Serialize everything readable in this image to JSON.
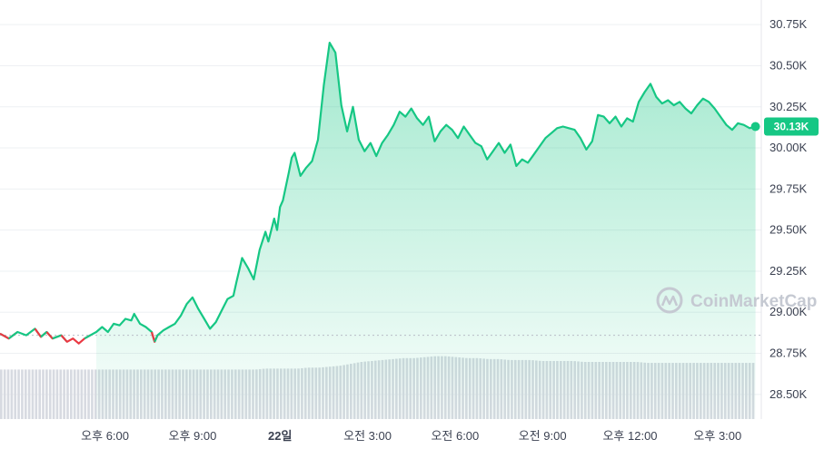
{
  "chart_data": {
    "type": "area",
    "y_ticks": [
      "30.75K",
      "30.50K",
      "30.25K",
      "30.00K",
      "29.75K",
      "29.50K",
      "29.25K",
      "29.00K",
      "28.75K",
      "28.50K"
    ],
    "y_tick_values": [
      30750,
      30500,
      30250,
      30000,
      29750,
      29500,
      29250,
      29000,
      28750,
      28500
    ],
    "ylim": [
      28350,
      30900
    ],
    "x_ticks": [
      {
        "label": "오후 6:00",
        "h": 3
      },
      {
        "label": "오후 9:00",
        "h": 6
      },
      {
        "label": "22일",
        "h": 9,
        "bold": true
      },
      {
        "label": "오전 3:00",
        "h": 12
      },
      {
        "label": "오전 6:00",
        "h": 15
      },
      {
        "label": "오전 9:00",
        "h": 18
      },
      {
        "label": "오후 12:00",
        "h": 21
      },
      {
        "label": "오후 3:00",
        "h": 24
      }
    ],
    "xlim": [
      -0.6,
      25.5
    ],
    "baseline": 28860,
    "current_value": 30130,
    "current_label": "30.13K",
    "colors": {
      "up": "#16c784",
      "down": "#ea3943",
      "badge": "#16c784",
      "baseline": "#b8bcc6"
    },
    "series": [
      {
        "values": [
          [
            -0.6,
            28870
          ],
          [
            -0.3,
            28840
          ],
          [
            0.0,
            28880
          ],
          [
            0.3,
            28860
          ],
          [
            0.6,
            28900
          ],
          [
            0.8,
            28850
          ],
          [
            1.0,
            28880
          ],
          [
            1.2,
            28840
          ],
          [
            1.5,
            28860
          ],
          [
            1.7,
            28820
          ],
          [
            1.9,
            28840
          ],
          [
            2.1,
            28810
          ],
          [
            2.3,
            28840
          ],
          [
            2.5,
            28860
          ],
          [
            2.7,
            28880
          ],
          [
            2.9,
            28910
          ],
          [
            3.1,
            28880
          ],
          [
            3.3,
            28930
          ],
          [
            3.5,
            28920
          ],
          [
            3.7,
            28960
          ],
          [
            3.9,
            28950
          ],
          [
            4.0,
            28990
          ],
          [
            4.2,
            28930
          ],
          [
            4.4,
            28910
          ],
          [
            4.6,
            28880
          ],
          [
            4.7,
            28820
          ],
          [
            4.8,
            28860
          ],
          [
            5.0,
            28890
          ],
          [
            5.2,
            28910
          ],
          [
            5.4,
            28930
          ],
          [
            5.6,
            28980
          ],
          [
            5.8,
            29050
          ],
          [
            6.0,
            29090
          ],
          [
            6.2,
            29020
          ],
          [
            6.4,
            28960
          ],
          [
            6.6,
            28900
          ],
          [
            6.8,
            28940
          ],
          [
            7.0,
            29010
          ],
          [
            7.2,
            29080
          ],
          [
            7.4,
            29100
          ],
          [
            7.5,
            29180
          ],
          [
            7.7,
            29330
          ],
          [
            7.9,
            29270
          ],
          [
            8.1,
            29200
          ],
          [
            8.3,
            29380
          ],
          [
            8.5,
            29490
          ],
          [
            8.6,
            29430
          ],
          [
            8.8,
            29570
          ],
          [
            8.9,
            29500
          ],
          [
            9.0,
            29640
          ],
          [
            9.1,
            29680
          ],
          [
            9.3,
            29850
          ],
          [
            9.4,
            29940
          ],
          [
            9.5,
            29970
          ],
          [
            9.7,
            29830
          ],
          [
            9.9,
            29880
          ],
          [
            10.1,
            29920
          ],
          [
            10.3,
            30050
          ],
          [
            10.5,
            30380
          ],
          [
            10.7,
            30640
          ],
          [
            10.9,
            30580
          ],
          [
            11.1,
            30260
          ],
          [
            11.3,
            30100
          ],
          [
            11.5,
            30250
          ],
          [
            11.7,
            30050
          ],
          [
            11.9,
            29980
          ],
          [
            12.1,
            30030
          ],
          [
            12.3,
            29950
          ],
          [
            12.5,
            30030
          ],
          [
            12.7,
            30080
          ],
          [
            12.9,
            30140
          ],
          [
            13.1,
            30220
          ],
          [
            13.3,
            30190
          ],
          [
            13.5,
            30240
          ],
          [
            13.7,
            30180
          ],
          [
            13.9,
            30140
          ],
          [
            14.1,
            30190
          ],
          [
            14.3,
            30040
          ],
          [
            14.5,
            30100
          ],
          [
            14.7,
            30140
          ],
          [
            14.9,
            30110
          ],
          [
            15.1,
            30060
          ],
          [
            15.3,
            30130
          ],
          [
            15.5,
            30080
          ],
          [
            15.7,
            30030
          ],
          [
            15.9,
            30010
          ],
          [
            16.1,
            29930
          ],
          [
            16.3,
            29980
          ],
          [
            16.5,
            30030
          ],
          [
            16.7,
            29970
          ],
          [
            16.9,
            30020
          ],
          [
            17.1,
            29890
          ],
          [
            17.3,
            29930
          ],
          [
            17.5,
            29910
          ],
          [
            17.7,
            29960
          ],
          [
            17.9,
            30010
          ],
          [
            18.1,
            30060
          ],
          [
            18.3,
            30090
          ],
          [
            18.5,
            30120
          ],
          [
            18.7,
            30130
          ],
          [
            18.9,
            30120
          ],
          [
            19.1,
            30110
          ],
          [
            19.3,
            30060
          ],
          [
            19.5,
            29990
          ],
          [
            19.7,
            30040
          ],
          [
            19.9,
            30200
          ],
          [
            20.1,
            30190
          ],
          [
            20.3,
            30150
          ],
          [
            20.5,
            30190
          ],
          [
            20.7,
            30130
          ],
          [
            20.9,
            30180
          ],
          [
            21.1,
            30160
          ],
          [
            21.3,
            30280
          ],
          [
            21.5,
            30340
          ],
          [
            21.7,
            30390
          ],
          [
            21.9,
            30310
          ],
          [
            22.1,
            30270
          ],
          [
            22.3,
            30290
          ],
          [
            22.5,
            30260
          ],
          [
            22.7,
            30280
          ],
          [
            22.9,
            30240
          ],
          [
            23.1,
            30210
          ],
          [
            23.3,
            30260
          ],
          [
            23.5,
            30300
          ],
          [
            23.7,
            30280
          ],
          [
            23.9,
            30240
          ],
          [
            24.1,
            30190
          ],
          [
            24.3,
            30140
          ],
          [
            24.5,
            30110
          ],
          [
            24.7,
            30150
          ],
          [
            24.9,
            30140
          ],
          [
            25.1,
            30120
          ],
          [
            25.3,
            30130
          ]
        ]
      }
    ],
    "volume": {
      "note_relative_levels": true,
      "values": [
        0.52,
        0.52,
        0.52,
        0.52,
        0.52,
        0.52,
        0.52,
        0.52,
        0.52,
        0.52,
        0.52,
        0.52,
        0.52,
        0.52,
        0.52,
        0.52,
        0.52,
        0.52,
        0.52,
        0.52,
        0.52,
        0.52,
        0.52,
        0.52,
        0.52,
        0.53,
        0.53,
        0.53,
        0.53,
        0.54,
        0.54,
        0.55,
        0.56,
        0.58,
        0.6,
        0.61,
        0.62,
        0.63,
        0.64,
        0.64,
        0.65,
        0.66,
        0.66,
        0.65,
        0.64,
        0.64,
        0.63,
        0.63,
        0.62,
        0.62,
        0.62,
        0.61,
        0.61,
        0.61,
        0.61,
        0.6,
        0.6,
        0.6,
        0.6,
        0.6,
        0.6,
        0.59,
        0.59,
        0.59,
        0.59,
        0.59,
        0.59,
        0.59,
        0.59,
        0.59,
        0.59,
        0.59
      ]
    }
  },
  "watermark": {
    "text": "CoinMarketCap"
  }
}
